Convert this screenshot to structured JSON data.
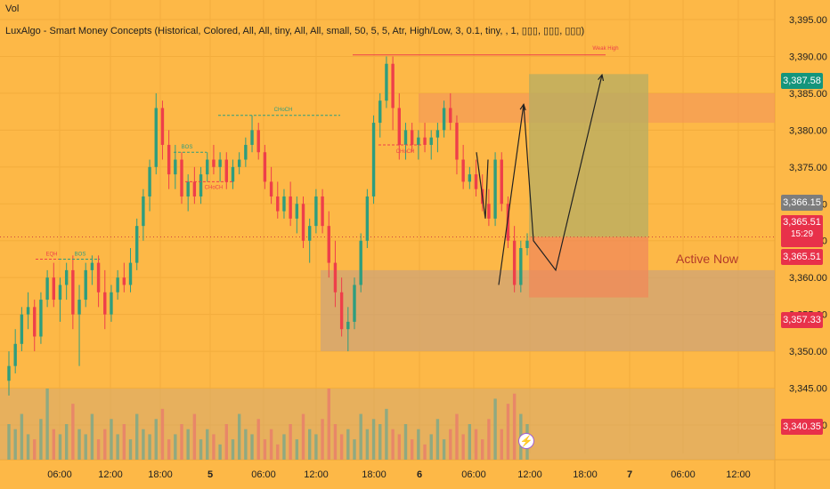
{
  "header": {
    "vol_label": "Vol",
    "indicator_label": "LuxAlgo - Smart Money Concepts (Historical, Colored, All, All, tiny, All, All, small, 50, 5, 5, Atr, High/Low, 3, 0.1, tiny, , 1, ▯▯▯, ▯▯▯, ▯▯▯)"
  },
  "annotations": {
    "active_now": "Active Now",
    "weak_high": "Weak High",
    "bos_1": "BOS",
    "bos_2": "BOS",
    "choch_1": "CHoCH",
    "choch_2": "CHoCH",
    "choch_3": "CHoCH",
    "eqh": "EQH"
  },
  "price_tags": {
    "upper": "3,387.58",
    "mid": "3,366.15",
    "current": "3,365.51",
    "countdown": "15:29",
    "current_repeat": "3,365.51",
    "lower": "3,357.33",
    "bottom": "3,340.35"
  },
  "colors": {
    "background": "#fdb847",
    "bull": "#2e9d7e",
    "bear": "#ee3f4a",
    "tag_green": "#14957c",
    "tag_red": "#e8314a",
    "tag_gray": "#7d7d7d"
  },
  "chart_data": {
    "type": "candlestick",
    "symbol": "",
    "y_axis": {
      "ticks": [
        "3,395.00",
        "3,390.00",
        "3,385.00",
        "3,380.00",
        "3,375.00",
        "3,370.00",
        "3,365.00",
        "3,360.00",
        "3,355.00",
        "3,350.00",
        "3,345.00",
        "3,340.00"
      ],
      "range": [
        3339,
        3397
      ]
    },
    "x_axis": {
      "ticks": [
        "06:00",
        "12:00",
        "18:00",
        "5",
        "06:00",
        "12:00",
        "18:00",
        "6",
        "06:00",
        "12:00",
        "18:00",
        "7",
        "06:00",
        "12:00"
      ]
    },
    "candles_ohlc": [
      [
        3346,
        3350,
        3344,
        3348
      ],
      [
        3348,
        3353,
        3347,
        3351
      ],
      [
        3351,
        3356,
        3350,
        3355
      ],
      [
        3355,
        3358,
        3353,
        3356
      ],
      [
        3356,
        3357,
        3350,
        3352
      ],
      [
        3352,
        3358,
        3351,
        3357
      ],
      [
        3357,
        3361,
        3356,
        3360
      ],
      [
        3360,
        3362,
        3356,
        3357
      ],
      [
        3357,
        3360,
        3354,
        3359
      ],
      [
        3359,
        3362,
        3357,
        3361
      ],
      [
        3361,
        3363,
        3353,
        3355
      ],
      [
        3355,
        3359,
        3348,
        3357
      ],
      [
        3357,
        3362,
        3356,
        3361
      ],
      [
        3361,
        3363,
        3359,
        3362
      ],
      [
        3362,
        3363,
        3356,
        3358
      ],
      [
        3358,
        3361,
        3353,
        3355
      ],
      [
        3355,
        3359,
        3354,
        3358
      ],
      [
        3358,
        3361,
        3357,
        3360
      ],
      [
        3360,
        3362,
        3358,
        3359
      ],
      [
        3359,
        3364,
        3358,
        3362
      ],
      [
        3362,
        3368,
        3361,
        3367
      ],
      [
        3367,
        3372,
        3365,
        3371
      ],
      [
        3371,
        3376,
        3369,
        3375
      ],
      [
        3375,
        3385,
        3374,
        3383
      ],
      [
        3383,
        3384,
        3376,
        3378
      ],
      [
        3378,
        3380,
        3372,
        3374
      ],
      [
        3374,
        3378,
        3372,
        3376
      ],
      [
        3376,
        3377,
        3370,
        3371
      ],
      [
        3371,
        3374,
        3369,
        3373
      ],
      [
        3373,
        3375,
        3370,
        3371
      ],
      [
        3371,
        3375,
        3370,
        3374
      ],
      [
        3374,
        3377,
        3373,
        3376
      ],
      [
        3376,
        3378,
        3374,
        3375
      ],
      [
        3375,
        3377,
        3373,
        3376
      ],
      [
        3376,
        3377,
        3372,
        3373
      ],
      [
        3373,
        3376,
        3372,
        3375
      ],
      [
        3375,
        3377,
        3374,
        3376
      ],
      [
        3376,
        3379,
        3375,
        3378
      ],
      [
        3378,
        3382,
        3377,
        3380
      ],
      [
        3380,
        3381,
        3376,
        3377
      ],
      [
        3377,
        3378,
        3372,
        3373
      ],
      [
        3373,
        3375,
        3370,
        3371
      ],
      [
        3371,
        3373,
        3368,
        3369
      ],
      [
        3369,
        3372,
        3368,
        3371
      ],
      [
        3371,
        3373,
        3367,
        3368
      ],
      [
        3368,
        3371,
        3366,
        3370
      ],
      [
        3370,
        3371,
        3364,
        3365
      ],
      [
        3365,
        3368,
        3362,
        3367
      ],
      [
        3367,
        3372,
        3366,
        3371
      ],
      [
        3371,
        3372,
        3366,
        3367
      ],
      [
        3367,
        3369,
        3360,
        3362
      ],
      [
        3362,
        3365,
        3356,
        3358
      ],
      [
        3358,
        3360,
        3352,
        3353
      ],
      [
        3353,
        3356,
        3350,
        3354
      ],
      [
        3354,
        3360,
        3353,
        3359
      ],
      [
        3359,
        3366,
        3358,
        3365
      ],
      [
        3365,
        3372,
        3364,
        3371
      ],
      [
        3371,
        3382,
        3370,
        3381
      ],
      [
        3381,
        3385,
        3379,
        3384
      ],
      [
        3384,
        3390,
        3383,
        3389
      ],
      [
        3389,
        3390,
        3380,
        3383
      ],
      [
        3383,
        3385,
        3376,
        3378
      ],
      [
        3378,
        3381,
        3376,
        3380
      ],
      [
        3380,
        3381,
        3377,
        3378
      ],
      [
        3378,
        3380,
        3376,
        3379
      ],
      [
        3379,
        3381,
        3377,
        3378
      ],
      [
        3378,
        3380,
        3376,
        3379
      ],
      [
        3379,
        3381,
        3377,
        3380
      ],
      [
        3380,
        3384,
        3379,
        3383
      ],
      [
        3383,
        3385,
        3380,
        3381
      ],
      [
        3381,
        3382,
        3374,
        3376
      ],
      [
        3376,
        3378,
        3372,
        3373
      ],
      [
        3373,
        3375,
        3372,
        3374
      ],
      [
        3374,
        3376,
        3371,
        3372
      ],
      [
        3372,
        3374,
        3369,
        3370
      ],
      [
        3370,
        3372,
        3367,
        3368
      ],
      [
        3368,
        3377,
        3367,
        3376
      ],
      [
        3376,
        3377,
        3369,
        3370
      ],
      [
        3370,
        3371,
        3364,
        3365
      ],
      [
        3365,
        3367,
        3358,
        3359
      ],
      [
        3359,
        3365,
        3358,
        3364
      ],
      [
        3364,
        3366,
        3363,
        3365
      ]
    ],
    "volume": [
      7,
      6,
      9,
      5,
      4,
      8,
      14,
      6,
      5,
      7,
      11,
      6,
      5,
      9,
      4,
      6,
      8,
      5,
      7,
      4,
      9,
      6,
      5,
      8,
      10,
      4,
      5,
      7,
      6,
      9,
      4,
      6,
      5,
      3,
      7,
      4,
      9,
      6,
      5,
      8,
      4,
      6,
      3,
      5,
      7,
      4,
      9,
      6,
      5,
      8,
      14,
      7,
      5,
      6,
      4,
      9,
      6,
      8,
      7,
      10,
      6,
      5,
      7,
      4,
      6,
      3,
      5,
      8,
      4,
      6,
      9,
      5,
      7,
      6,
      4,
      8,
      12,
      6,
      11,
      13,
      9,
      7
    ],
    "zones": [
      {
        "label": "supply",
        "price_range": [
          3381,
          3385
        ]
      },
      {
        "label": "demand",
        "price_range": [
          3350,
          3361
        ]
      },
      {
        "label": "long_target",
        "price_range": [
          3365.5,
          3387.6
        ]
      },
      {
        "label": "long_stop",
        "price_range": [
          3357.3,
          3365.5
        ]
      }
    ],
    "projection_path": [
      3359,
      3383.5,
      3365,
      3361,
      3387.5
    ]
  }
}
